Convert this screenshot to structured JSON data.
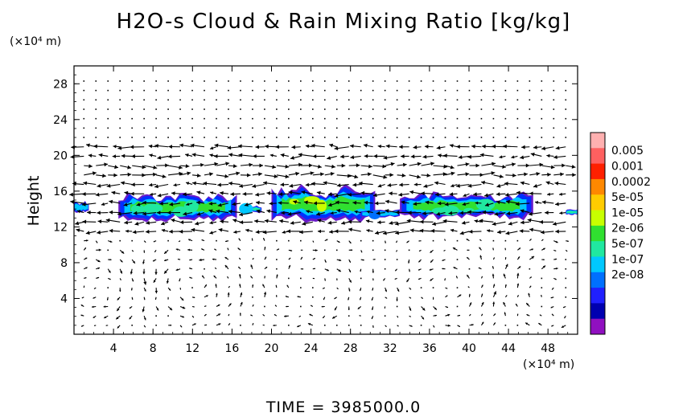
{
  "chart_data": {
    "type": "heatmap",
    "title": "H2O-s Cloud & Rain Mixing Ratio [kg/kg]",
    "ylabel": "Height",
    "x_unit": "(×10⁴ m)",
    "y_unit": "(×10⁴ m)",
    "xlim": [
      0,
      51
    ],
    "ylim": [
      0,
      30
    ],
    "x_ticks": [
      "4",
      "8",
      "12",
      "16",
      "20",
      "24",
      "28",
      "32",
      "36",
      "40",
      "44",
      "48"
    ],
    "x_tick_values": [
      4,
      8,
      12,
      16,
      20,
      24,
      28,
      32,
      36,
      40,
      44,
      48
    ],
    "y_ticks": [
      "4",
      "8",
      "12",
      "16",
      "20",
      "24",
      "28"
    ],
    "y_tick_values": [
      4,
      8,
      12,
      16,
      20,
      24,
      28
    ],
    "colorbar": {
      "labels": [
        "0.005",
        "0.001",
        "0.0002",
        "5e-05",
        "1e-05",
        "2e-06",
        "5e-07",
        "1e-07",
        "2e-08"
      ],
      "colors": [
        "#ffb0b0",
        "#ff6060",
        "#ff2000",
        "#ff8800",
        "#ffcc00",
        "#c8ff00",
        "#30e030",
        "#20e8a0",
        "#00c8ff",
        "#0070ff",
        "#2020ff",
        "#0000b0",
        "#9010c0"
      ]
    },
    "cloud_band": {
      "description_values": "mixing ratio mostly 2e-06 to 5e-05 between heights 12.5 and 16.5",
      "segments": [
        {
          "x": [
            0,
            1.5
          ],
          "y": [
            13.5,
            15.0
          ],
          "level": "5e-07"
        },
        {
          "x": [
            4.5,
            16.5
          ],
          "y": [
            12.5,
            16.0
          ],
          "level": "1e-05"
        },
        {
          "x": [
            17,
            19
          ],
          "y": [
            13.5,
            14.5
          ],
          "level": "2e-06"
        },
        {
          "x": [
            20,
            30.5
          ],
          "y": [
            12.3,
            16.8
          ],
          "level": "5e-05"
        },
        {
          "x": [
            29,
            33
          ],
          "y": [
            13.0,
            14.0
          ],
          "level": "5e-07"
        },
        {
          "x": [
            33,
            46.5
          ],
          "y": [
            12.7,
            16.0
          ],
          "level": "1e-05"
        },
        {
          "x": [
            49.8,
            51
          ],
          "y": [
            13.3,
            14.0
          ],
          "level": "2e-06"
        }
      ]
    },
    "time_label": "TIME  =  3985000.0"
  }
}
